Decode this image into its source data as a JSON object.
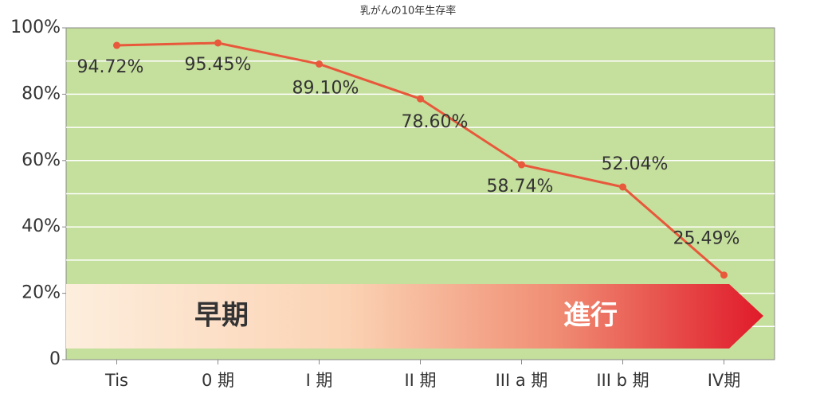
{
  "chart_data": {
    "type": "line",
    "title": "乳がんの10年生存率",
    "categories": [
      "Tis",
      "0 期",
      "I 期",
      "II 期",
      "III a 期",
      "III b 期",
      "IV期"
    ],
    "series": [
      {
        "name": "10年生存率",
        "color": "#e8583b",
        "values": [
          94.72,
          95.45,
          89.1,
          78.6,
          58.74,
          52.04,
          25.49
        ],
        "value_labels": [
          "94.72%",
          "95.45%",
          "89.10%",
          "78.60%",
          "58.74%",
          "52.04%",
          "25.49%"
        ]
      }
    ],
    "ylim": [
      0,
      100
    ],
    "yticks": [
      0,
      {
        "value": 20,
        "label": "20%"
      },
      {
        "value": 40,
        "label": "40%"
      },
      {
        "value": 60,
        "label": "60%"
      },
      {
        "value": 80,
        "label": "80%"
      },
      {
        "value": 100,
        "label": "100%"
      }
    ],
    "grid": true,
    "annotations": [
      "早期",
      "進行"
    ]
  }
}
